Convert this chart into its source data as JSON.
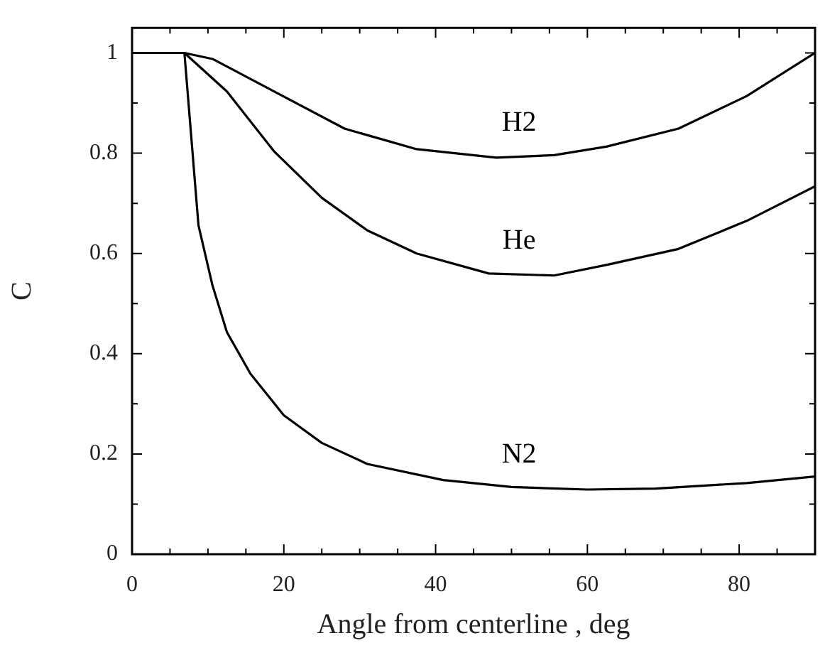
{
  "chart_data": {
    "type": "line",
    "xlabel": "Angle from centerline , deg",
    "ylabel": "C",
    "xlim": [
      0,
      90
    ],
    "ylim": [
      0,
      1.05
    ],
    "xticks": [
      0,
      {
        "value": 5,
        "label": null
      },
      {
        "value": 10,
        "label": null
      },
      {
        "value": 15,
        "label": null
      },
      20,
      {
        "value": 25,
        "label": null
      },
      {
        "value": 30,
        "label": null
      },
      {
        "value": 35,
        "label": null
      },
      40,
      {
        "value": 45,
        "label": null
      },
      {
        "value": 50,
        "label": null
      },
      {
        "value": 55,
        "label": null
      },
      60,
      {
        "value": 65,
        "label": null
      },
      {
        "value": 70,
        "label": null
      },
      {
        "value": 75,
        "label": null
      },
      80,
      {
        "value": 85,
        "label": null
      }
    ],
    "yticks": [
      0,
      {
        "value": 0.1,
        "label": null
      },
      0.2,
      {
        "value": 0.3,
        "label": null
      },
      0.4,
      {
        "value": 0.5,
        "label": null
      },
      0.6,
      {
        "value": 0.7,
        "label": null
      },
      0.8,
      {
        "value": 0.9,
        "label": null
      },
      1
    ],
    "grid": false,
    "legend": false,
    "marker": "none",
    "line_style": "solid",
    "series": [
      {
        "name": "H2",
        "color": "#000000",
        "x": [
          0,
          6.9,
          10.6,
          18.75,
          28,
          37.5,
          48,
          55.6,
          62.5,
          72,
          81,
          90
        ],
        "values": [
          1,
          1,
          0.988,
          0.923,
          0.849,
          0.808,
          0.791,
          0.796,
          0.813,
          0.849,
          0.914,
          1.0
        ]
      },
      {
        "name": "He",
        "color": "#000000",
        "x": [
          0,
          6.9,
          12.5,
          18.75,
          25,
          31,
          37.5,
          47,
          55.6,
          62.5,
          72,
          81,
          90
        ],
        "values": [
          1,
          1,
          0.923,
          0.803,
          0.711,
          0.646,
          0.6,
          0.56,
          0.556,
          0.577,
          0.609,
          0.665,
          0.734
        ]
      },
      {
        "name": "N2",
        "color": "#000000",
        "x": [
          0,
          6.9,
          8.75,
          10.6,
          12.5,
          15.6,
          20,
          25,
          31,
          41,
          50,
          60,
          69,
          81,
          90
        ],
        "values": [
          1,
          1,
          0.656,
          0.536,
          0.443,
          0.36,
          0.277,
          0.222,
          0.18,
          0.148,
          0.134,
          0.129,
          0.131,
          0.142,
          0.155
        ]
      }
    ]
  }
}
